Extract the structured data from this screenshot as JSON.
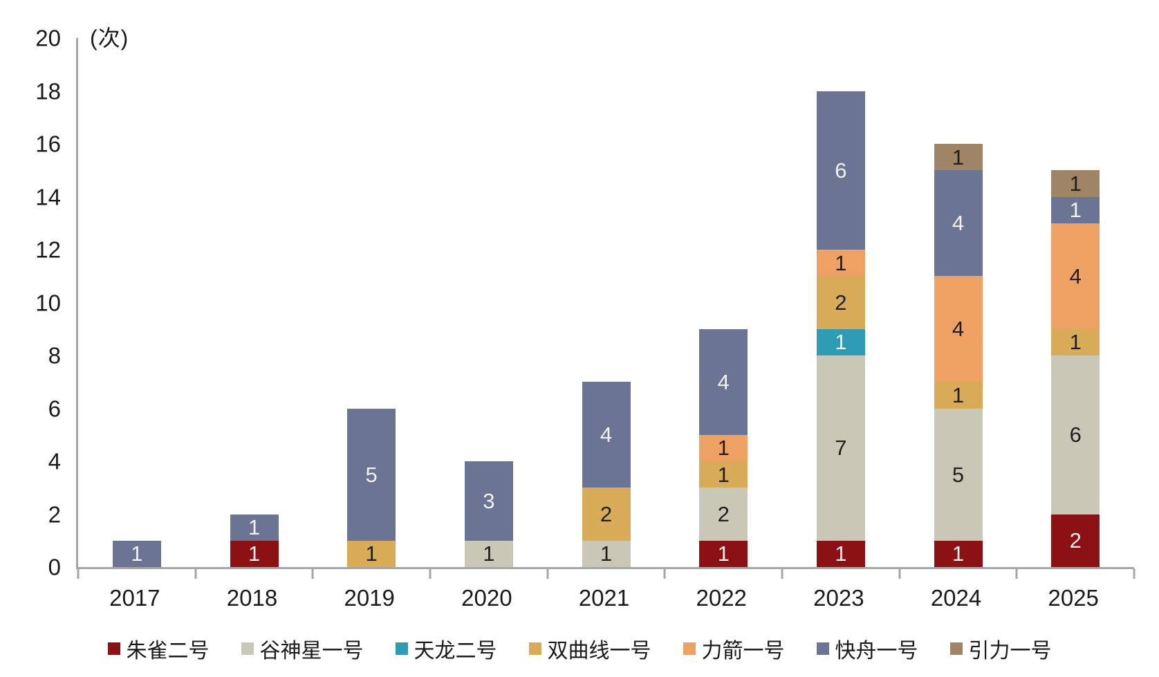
{
  "chart_data": {
    "type": "bar",
    "stacked": true,
    "title": "",
    "unit_label": "(次)",
    "categories": [
      "2017",
      "2018",
      "2019",
      "2020",
      "2021",
      "2022",
      "2023",
      "2024",
      "2025"
    ],
    "series": [
      {
        "name": "朱雀二号",
        "color": "#8b1114",
        "label_color": "#f2f2f2",
        "values": [
          0,
          1,
          0,
          0,
          0,
          1,
          1,
          1,
          2
        ]
      },
      {
        "name": "谷神星一号",
        "color": "#c9c7b6",
        "label_color": "#1f1f1f",
        "values": [
          0,
          0,
          0,
          1,
          1,
          2,
          7,
          5,
          6
        ]
      },
      {
        "name": "天龙二号",
        "color": "#2d9cb4",
        "label_color": "#f2f2f2",
        "values": [
          0,
          0,
          0,
          0,
          0,
          0,
          1,
          0,
          0
        ]
      },
      {
        "name": "双曲线一号",
        "color": "#d8ab59",
        "label_color": "#1f1f1f",
        "values": [
          0,
          0,
          1,
          0,
          2,
          1,
          2,
          1,
          1
        ]
      },
      {
        "name": "力箭一号",
        "color": "#efa063",
        "label_color": "#1f1f1f",
        "values": [
          0,
          0,
          0,
          0,
          0,
          1,
          1,
          4,
          4
        ]
      },
      {
        "name": "快舟一号",
        "color": "#6b7492",
        "label_color": "#f2f2f2",
        "values": [
          1,
          1,
          5,
          3,
          4,
          4,
          6,
          4,
          1
        ]
      },
      {
        "name": "引力一号",
        "color": "#9f8465",
        "label_color": "#1f1f1f",
        "values": [
          0,
          0,
          0,
          0,
          0,
          0,
          0,
          1,
          1
        ]
      }
    ],
    "ylim": [
      0,
      20
    ],
    "yticks": [
      0,
      2,
      4,
      6,
      8,
      10,
      12,
      14,
      16,
      18,
      20
    ],
    "grid": false,
    "legend_position": "bottom",
    "axis_color": "#a6a6a6",
    "text_color": "#1a1a1a"
  }
}
